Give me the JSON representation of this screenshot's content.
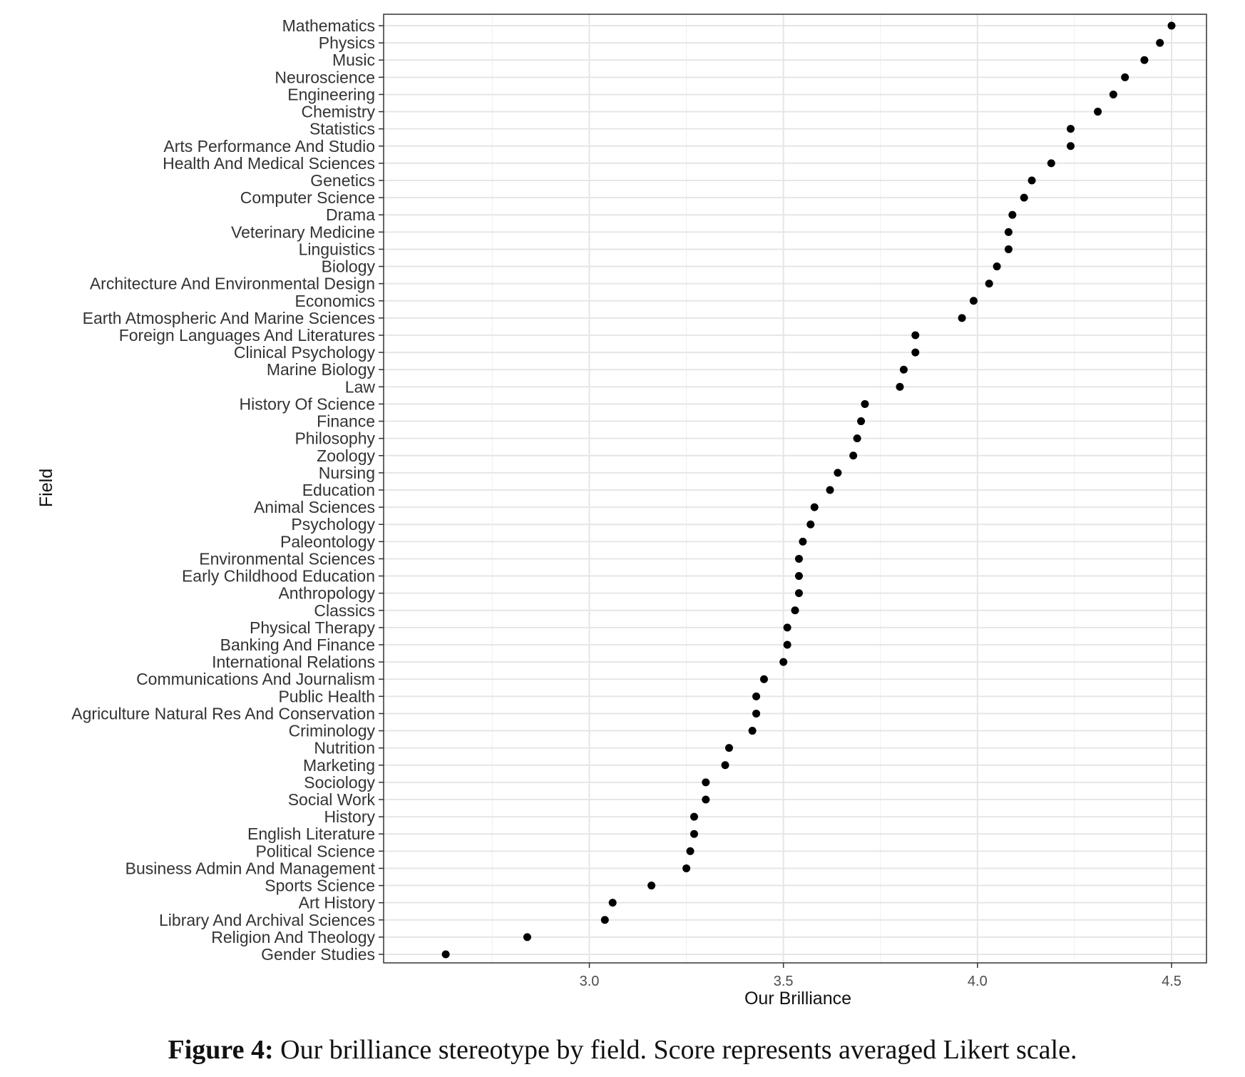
{
  "caption": {
    "label": "Figure 4:",
    "text": "Our brilliance stereotype by field. Score represents averaged Likert scale."
  },
  "chart_data": {
    "type": "scatter",
    "xlabel": "Our Brilliance",
    "ylabel": "Field",
    "xlim": [
      2.47,
      4.59
    ],
    "xticks": [
      "3.0",
      "3.5",
      "4.0",
      "4.5"
    ],
    "grid": true,
    "point_color": "#000000",
    "categories": [
      "Mathematics",
      "Physics",
      "Music",
      "Neuroscience",
      "Engineering",
      "Chemistry",
      "Statistics",
      "Arts Performance And Studio",
      "Health And Medical Sciences",
      "Genetics",
      "Computer Science",
      "Drama",
      "Veterinary Medicine",
      "Linguistics",
      "Biology",
      "Architecture And Environmental Design",
      "Economics",
      "Earth Atmospheric And Marine Sciences",
      "Foreign Languages And Literatures",
      "Clinical Psychology",
      "Marine Biology",
      "Law",
      "History Of Science",
      "Finance",
      "Philosophy",
      "Zoology",
      "Nursing",
      "Education",
      "Animal Sciences",
      "Psychology",
      "Paleontology",
      "Environmental Sciences",
      "Early Childhood Education",
      "Anthropology",
      "Classics",
      "Physical Therapy",
      "Banking And Finance",
      "International Relations",
      "Communications And Journalism",
      "Public Health",
      "Agriculture Natural Res And Conservation",
      "Criminology",
      "Nutrition",
      "Marketing",
      "Sociology",
      "Social Work",
      "History",
      "English Literature",
      "Political Science",
      "Business Admin And Management",
      "Sports Science",
      "Art History",
      "Library And Archival Sciences",
      "Religion And Theology",
      "Gender Studies"
    ],
    "values": [
      4.5,
      4.47,
      4.43,
      4.38,
      4.35,
      4.31,
      4.24,
      4.24,
      4.19,
      4.14,
      4.12,
      4.09,
      4.08,
      4.08,
      4.05,
      4.03,
      3.99,
      3.96,
      3.84,
      3.84,
      3.81,
      3.8,
      3.71,
      3.7,
      3.69,
      3.68,
      3.64,
      3.62,
      3.58,
      3.57,
      3.55,
      3.54,
      3.54,
      3.54,
      3.53,
      3.51,
      3.51,
      3.5,
      3.45,
      3.43,
      3.43,
      3.42,
      3.36,
      3.35,
      3.3,
      3.3,
      3.27,
      3.27,
      3.26,
      3.25,
      3.16,
      3.06,
      3.04,
      2.84,
      2.63
    ]
  }
}
